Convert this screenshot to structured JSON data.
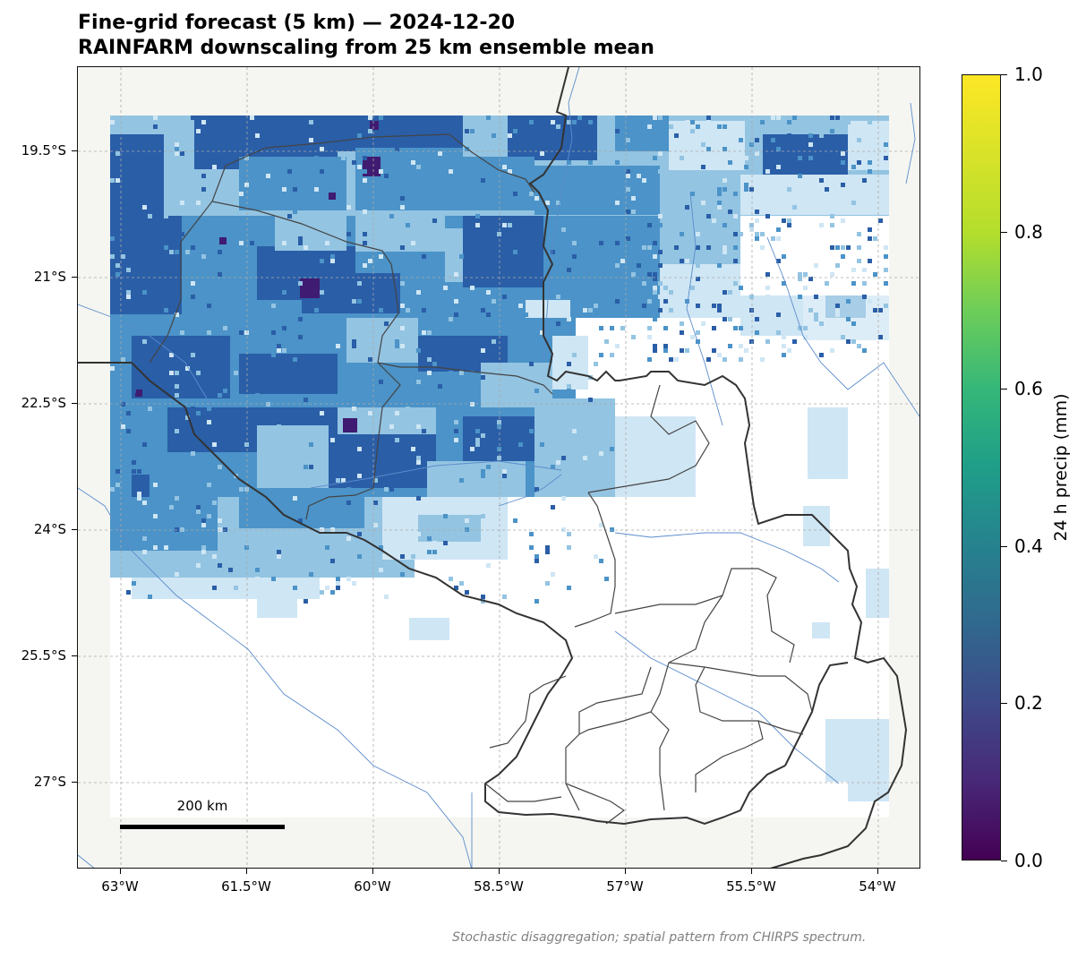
{
  "title_line1": "Fine-grid forecast (5 km) — 2024-12-20",
  "title_line2": "RAINFARM downscaling from 25 km ensemble mean",
  "axes": {
    "y_labels": [
      "19.5°S",
      "21°S",
      "22.5°S",
      "24°S",
      "25.5°S",
      "27°S"
    ],
    "x_labels": [
      "63°W",
      "61.5°W",
      "60°W",
      "58.5°W",
      "57°W",
      "55.5°W",
      "54°W"
    ],
    "lon_range": [
      -63.5,
      -53.5
    ],
    "lat_range": [
      -28.5,
      -18.9
    ]
  },
  "colorbar": {
    "label": "24 h precip (mm)",
    "ticks": [
      "0.0",
      "0.2",
      "0.4",
      "0.6",
      "0.8",
      "1.0"
    ],
    "range": [
      0.0,
      1.0
    ],
    "colormap": "viridis"
  },
  "scale_bar": {
    "label": "200 km"
  },
  "footnote": "Stochastic disaggregation; spatial pattern from CHIRPS spectrum.",
  "colors": {
    "land": "#f5f6f1",
    "domain": "#ffffff",
    "precip_light": "#cfe6f4",
    "precip_medium": "#93c4e2",
    "precip_high": "#4b93c8",
    "precip_heavy": "#2a5ea7",
    "precip_extreme": "#3f1b71",
    "rivers": "#5b8ccc",
    "borders": "#333333"
  }
}
